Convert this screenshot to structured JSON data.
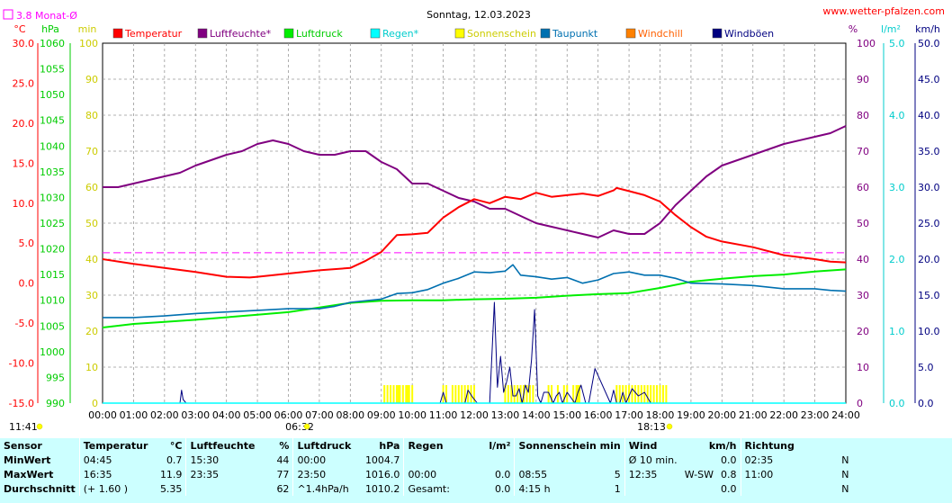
{
  "chart_data": {
    "type": "line",
    "title": "Sonntag, 12.03.2023",
    "source": "www.wetter-pfalzen.com",
    "monthly_avg_label": "3.8 Monat-Ø",
    "monthly_avg_temp": 3.8,
    "sunrise": "06:32",
    "sunset": "18:13",
    "sun_start_label": "11:41",
    "axes": {
      "temp": {
        "unit": "°C",
        "min": -15,
        "max": 30,
        "ticks": [
          "30.0",
          "25.0",
          "20.0",
          "15.0",
          "10.0",
          "5.0",
          "0.0",
          "-5.0",
          "-10.0",
          "-15.0"
        ],
        "color": "#ff0000"
      },
      "press": {
        "unit": "hPa",
        "min": 990,
        "max": 1060,
        "ticks": [
          "1060",
          "1055",
          "1050",
          "1045",
          "1040",
          "1035",
          "1030",
          "1025",
          "1020",
          "1015",
          "1010",
          "1005",
          "1000",
          "995",
          "990"
        ],
        "color": "#00cc00"
      },
      "sun": {
        "unit": "min",
        "min": 0,
        "max": 100,
        "ticks": [
          "100",
          "90",
          "80",
          "70",
          "60",
          "50",
          "40",
          "30",
          "20",
          "10",
          "0"
        ],
        "color": "#cccc00"
      },
      "hum": {
        "unit": "%",
        "min": 0,
        "max": 100,
        "ticks": [
          "100",
          "90",
          "80",
          "70",
          "60",
          "50",
          "40",
          "30",
          "20",
          "10",
          "0"
        ],
        "color": "#800080"
      },
      "rain": {
        "unit": "l/m²",
        "min": 0,
        "max": 5,
        "ticks": [
          "5.0",
          "4.0",
          "3.0",
          "2.0",
          "1.0",
          "0.0"
        ],
        "color": "#00cccc"
      },
      "wind": {
        "unit": "km/h",
        "min": 0,
        "max": 50,
        "ticks": [
          "50.0",
          "45.0",
          "40.0",
          "35.0",
          "30.0",
          "25.0",
          "20.0",
          "15.0",
          "10.0",
          "5.0",
          "0.0"
        ],
        "color": "#000080"
      }
    },
    "x_ticks": [
      "00:00",
      "01:00",
      "02:00",
      "03:00",
      "04:00",
      "05:00",
      "06:00",
      "07:00",
      "08:00",
      "09:00",
      "10:00",
      "11:00",
      "12:00",
      "13:00",
      "14:00",
      "15:00",
      "16:00",
      "17:00",
      "18:00",
      "19:00",
      "20:00",
      "21:00",
      "22:00",
      "23:00",
      "24:00"
    ],
    "legend": [
      {
        "name": "Temperatur",
        "color": "#ff0000",
        "text_color": "#ff0000"
      },
      {
        "name": "Luftfeuchte*",
        "color": "#800080",
        "text_color": "#800080"
      },
      {
        "name": "Luftdruck",
        "color": "#00ee00",
        "text_color": "#00cc00"
      },
      {
        "name": "Regen*",
        "color": "#00ffff",
        "text_color": "#00cccc"
      },
      {
        "name": "Sonnenschein",
        "color": "#ffff00",
        "text_color": "#cccc00"
      },
      {
        "name": "Taupunkt",
        "color": "#0070b0",
        "text_color": "#0070b0"
      },
      {
        "name": "Windchill",
        "color": "#ff8000",
        "text_color": "#ff6000"
      },
      {
        "name": "Windböen",
        "color": "#000080",
        "text_color": "#000080"
      }
    ],
    "series": {
      "temperature": {
        "x": [
          0,
          1,
          2,
          3,
          4,
          4.75,
          5,
          6,
          7,
          8,
          8.5,
          9,
          9.5,
          10,
          10.5,
          11,
          11.5,
          12,
          12.5,
          13,
          13.5,
          14,
          14.5,
          15,
          15.5,
          16,
          16.5,
          16.6,
          17,
          17.5,
          18,
          18.5,
          19,
          19.5,
          20,
          21,
          22,
          23,
          23.5,
          24
        ],
        "y": [
          3,
          2.4,
          1.9,
          1.4,
          0.8,
          0.7,
          0.8,
          1.2,
          1.6,
          1.9,
          2.8,
          3.9,
          6,
          6.1,
          6.3,
          8.2,
          9.5,
          10.5,
          10,
          10.8,
          10.5,
          11.3,
          10.8,
          11,
          11.2,
          10.9,
          11.6,
          11.9,
          11.5,
          11,
          10.2,
          8.5,
          7,
          5.8,
          5.2,
          4.5,
          3.5,
          3,
          2.7,
          2.6
        ]
      },
      "humidity": {
        "x": [
          0,
          0.5,
          1,
          2,
          2.5,
          3,
          4,
          4.5,
          5,
          5.5,
          6,
          6.5,
          7,
          7.5,
          8,
          8.5,
          9,
          9.5,
          10,
          10.5,
          11,
          11.5,
          12,
          12.5,
          13,
          13.5,
          14,
          14.5,
          15,
          15.5,
          16,
          16.5,
          17,
          17.5,
          18,
          18.5,
          19,
          19.5,
          20,
          21,
          22,
          23,
          23.5,
          24
        ],
        "y": [
          60,
          60,
          61,
          63,
          64,
          66,
          69,
          70,
          72,
          73,
          72,
          70,
          69,
          69,
          70,
          70,
          67,
          65,
          61,
          61,
          59,
          57,
          56,
          54,
          54,
          52,
          50,
          49,
          48,
          47,
          46,
          48,
          47,
          47,
          50,
          55,
          59,
          63,
          66,
          69,
          72,
          74,
          75,
          77
        ]
      },
      "pressure": {
        "x": [
          0,
          1,
          2,
          3,
          4,
          5,
          6,
          7,
          8,
          9,
          10,
          11,
          12,
          13,
          14,
          15,
          16,
          17,
          18,
          19,
          20,
          21,
          22,
          23,
          24
        ],
        "y": [
          1004.7,
          1005.4,
          1005.8,
          1006.2,
          1006.7,
          1007.2,
          1007.7,
          1008.6,
          1009.5,
          1009.9,
          1010,
          1010,
          1010.2,
          1010.3,
          1010.5,
          1010.9,
          1011.2,
          1011.4,
          1012.4,
          1013.6,
          1014.2,
          1014.7,
          1015,
          1015.6,
          1016
        ]
      },
      "dewpoint": {
        "x": [
          0,
          1,
          2,
          3,
          4,
          5,
          6,
          7,
          7.5,
          8,
          9,
          9.5,
          10,
          10.5,
          11,
          11.5,
          12,
          12.5,
          13,
          13.25,
          13.5,
          14,
          14.5,
          15,
          15.5,
          16,
          16.5,
          17,
          17.5,
          18,
          18.5,
          19,
          20,
          21,
          22,
          23,
          23.5,
          24
        ],
        "y": [
          -4.3,
          -4.3,
          -4.1,
          -3.8,
          -3.6,
          -3.4,
          -3.2,
          -3.2,
          -2.9,
          -2.4,
          -2,
          -1.3,
          -1.2,
          -0.8,
          0,
          0.6,
          1.4,
          1.3,
          1.5,
          2.3,
          1,
          0.8,
          0.5,
          0.7,
          0,
          0.4,
          1.2,
          1.4,
          1,
          1,
          0.6,
          0,
          -0.1,
          -0.3,
          -0.7,
          -0.7,
          -0.9,
          -1
        ]
      },
      "rain": {
        "x": [
          0,
          24
        ],
        "y": [
          0,
          0
        ]
      },
      "gusts": {
        "x": [
          0,
          2.5,
          2.55,
          2.6,
          2.7,
          3,
          10.9,
          11,
          11.1,
          11.3,
          11.7,
          11.8,
          11.95,
          12.1,
          12.5,
          12.65,
          12.75,
          12.85,
          12.95,
          13.05,
          13.15,
          13.25,
          13.35,
          13.45,
          13.55,
          13.65,
          13.75,
          13.85,
          13.95,
          14.05,
          14.15,
          14.25,
          14.4,
          14.55,
          14.65,
          14.75,
          14.85,
          15.0,
          15.25,
          15.35,
          15.45,
          15.6,
          15.7,
          15.9,
          16.4,
          16.5,
          16.6,
          16.7,
          16.8,
          16.9,
          17.1,
          17.3,
          17.5,
          17.7,
          24
        ],
        "y": [
          0,
          0,
          1.8,
          0.5,
          0,
          0,
          0,
          1.5,
          0,
          0,
          0,
          1.8,
          0.8,
          0,
          0,
          14,
          2.2,
          6.5,
          1.5,
          3,
          5,
          1,
          1,
          2,
          0,
          2.5,
          1.5,
          6,
          13,
          1,
          0,
          1.5,
          1.5,
          0,
          1,
          1.5,
          0,
          1.5,
          0,
          1.5,
          2.5,
          0,
          0,
          4.8,
          0,
          1.8,
          0,
          0,
          1.5,
          0,
          2,
          1,
          1.5,
          0,
          0
        ]
      },
      "sunshine": {
        "x": [
          9.1,
          9.2,
          9.3,
          9.4,
          9.5,
          9.55,
          9.6,
          9.7,
          9.8,
          9.85,
          9.9,
          10.0,
          11.0,
          11.1,
          11.3,
          11.4,
          11.5,
          11.6,
          11.7,
          11.8,
          11.9,
          12.0,
          13.0,
          13.1,
          13.2,
          13.3,
          13.4,
          13.5,
          13.6,
          13.7,
          13.8,
          13.9,
          14.4,
          14.5,
          14.7,
          14.9,
          15.0,
          15.2,
          15.3,
          15.35,
          15.4,
          16.6,
          16.7,
          16.8,
          16.9,
          17.0,
          17.1,
          17.2,
          17.3,
          17.4,
          17.5,
          17.6,
          17.7,
          17.8,
          17.9,
          18.0,
          18.1,
          18.2
        ],
        "y": [
          5,
          5,
          5,
          5,
          5,
          5,
          5,
          5,
          5,
          5,
          5,
          5,
          5,
          5,
          5,
          5,
          5,
          5,
          5,
          5,
          5,
          5,
          5,
          5,
          5,
          5,
          5,
          5,
          5,
          5,
          5,
          5,
          5,
          5,
          5,
          5,
          5,
          5,
          5,
          5,
          5,
          5,
          5,
          5,
          5,
          5,
          5,
          5,
          5,
          5,
          5,
          5,
          5,
          5,
          5,
          5,
          5,
          5
        ]
      }
    }
  },
  "summary": {
    "headers": {
      "sensor": "Sensor",
      "temp": "Temperatur",
      "temp_unit": "°C",
      "hum": "Luftfeuchte",
      "hum_unit": "%",
      "press": "Luftdruck",
      "press_unit": "hPa",
      "rain": "Regen",
      "rain_unit": "l/m²",
      "sun": "Sonnenschein min",
      "wind": "Wind",
      "wind_unit": "km/h",
      "dir": "Richtung"
    },
    "rows": [
      {
        "label": "MinWert",
        "temp_time": "04:45",
        "temp_val": "0.7",
        "hum_time": "15:30",
        "hum_val": "44",
        "press_time": "00:00",
        "press_val": "1004.7",
        "rain_time": "",
        "rain_val": "",
        "sun_time": "",
        "sun_val": "",
        "wind_time": "Ø 10 min.",
        "wind_dir": "",
        "wind_val": "0.0",
        "dir_time": "02:35",
        "dir_val": "N"
      },
      {
        "label": "MaxWert",
        "temp_time": "16:35",
        "temp_val": "11.9",
        "hum_time": "23:35",
        "hum_val": "77",
        "press_time": "23:50",
        "press_val": "1016.0",
        "rain_time": "00:00",
        "rain_val": "0.0",
        "sun_time": "08:55",
        "sun_val": "5",
        "wind_time": "12:35",
        "wind_dir": "W-SW",
        "wind_val": "0.8",
        "dir_time": "11:00",
        "dir_val": "N"
      },
      {
        "label": "Durchschnitt",
        "temp_time": "(+ 1.60 )",
        "temp_val": "5.35",
        "hum_time": "",
        "hum_val": "62",
        "press_time": "^1.4hPa/h",
        "press_val": "1010.2",
        "rain_time": "Gesamt:",
        "rain_val": "0.0",
        "sun_time": "4:15 h",
        "sun_val": "1",
        "wind_time": "",
        "wind_dir": "",
        "wind_val": "0.0",
        "dir_time": "",
        "dir_val": "N"
      }
    ]
  }
}
